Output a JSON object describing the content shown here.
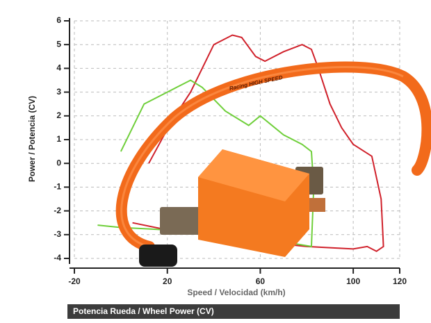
{
  "chart_data": {
    "type": "line",
    "caption": "Potencia Rueda / Wheel Power (CV)",
    "xlabel": "Speed / Velocidad (km/h)",
    "ylabel": "Power / Potencia (CV)",
    "photo_text": "Racing HIGH SPEED",
    "xlim": [
      -20,
      120
    ],
    "xticks": [
      -20,
      20,
      60,
      100,
      120
    ],
    "ylim": [
      -4,
      6
    ],
    "yticks": [
      -4,
      -3,
      -2,
      -1,
      0,
      1,
      2,
      3,
      4,
      5,
      6
    ],
    "grid": true,
    "series": [
      {
        "color": "#d0202a",
        "x": [
          12,
          22,
          30,
          35,
          40,
          48,
          52,
          58,
          62,
          70,
          78,
          82,
          85,
          90,
          95,
          100,
          108,
          112,
          113,
          110,
          106,
          100,
          80,
          60,
          40,
          20,
          5
        ],
        "values": [
          0,
          1.8,
          3.0,
          4.0,
          5.0,
          5.4,
          5.3,
          4.5,
          4.3,
          4.7,
          5.0,
          4.8,
          4.0,
          2.5,
          1.5,
          0.8,
          0.3,
          -1.5,
          -3.5,
          -3.7,
          -3.5,
          -3.6,
          -3.5,
          -3.3,
          -3.0,
          -2.8,
          -2.5
        ]
      },
      {
        "color": "#6fcf3a",
        "x": [
          0,
          10,
          20,
          30,
          35,
          45,
          55,
          60,
          70,
          78,
          82,
          83,
          82,
          70,
          50,
          30,
          20,
          0,
          -10
        ],
        "values": [
          0.5,
          2.5,
          3.0,
          3.5,
          3.2,
          2.2,
          1.6,
          2.0,
          1.2,
          0.8,
          0.5,
          -1.0,
          -3.5,
          -3.3,
          -3.0,
          -2.9,
          -2.8,
          -2.7,
          -2.6
        ]
      }
    ]
  }
}
